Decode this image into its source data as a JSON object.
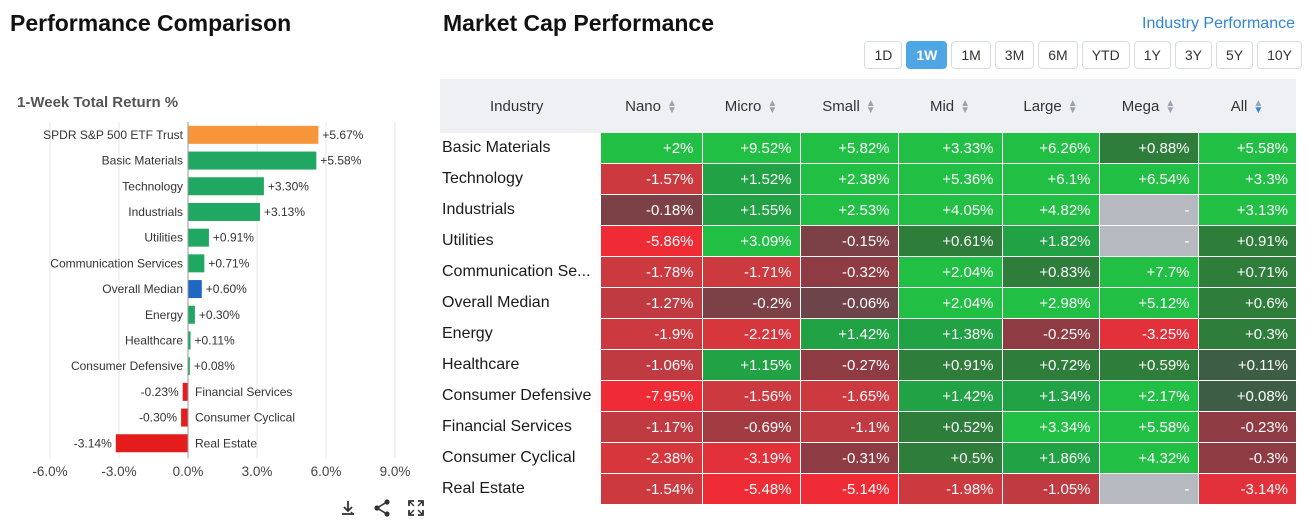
{
  "left_panel": {
    "title": "Performance Comparison"
  },
  "chart_data": {
    "type": "bar",
    "orientation": "horizontal",
    "title": "1-Week Total Return %",
    "categories": [
      "SPDR S&P 500 ETF Trust",
      "Basic Materials",
      "Technology",
      "Industrials",
      "Utilities",
      "Communication Services",
      "Overall Median",
      "Energy",
      "Healthcare",
      "Consumer Defensive",
      "Financial Services",
      "Consumer Cyclical",
      "Real Estate"
    ],
    "values": [
      5.67,
      5.58,
      3.3,
      3.13,
      0.91,
      0.71,
      0.6,
      0.3,
      0.11,
      0.08,
      -0.23,
      -0.3,
      -3.14
    ],
    "value_labels": [
      "+5.67%",
      "+5.58%",
      "+3.30%",
      "+3.13%",
      "+0.91%",
      "+0.71%",
      "+0.60%",
      "+0.30%",
      "+0.11%",
      "+0.08%",
      "-0.23%",
      "-0.30%",
      "-3.14%"
    ],
    "colors": [
      "#f7953a",
      "#20a862",
      "#20a862",
      "#20a862",
      "#20a862",
      "#20a862",
      "#1f67c4",
      "#20a862",
      "#20a862",
      "#20a862",
      "#e51c1c",
      "#e51c1c",
      "#e51c1c"
    ],
    "xlim": [
      -6,
      9
    ],
    "xticks": [
      -6,
      -3,
      0,
      3,
      6,
      9
    ],
    "xtick_labels": [
      "-6.0%",
      "-3.0%",
      "0.0%",
      "3.0%",
      "6.0%",
      "9.0%"
    ],
    "grid": "vertical",
    "legend": "none"
  },
  "chart_tools": [
    "download-icon",
    "share-icon",
    "expand-icon"
  ],
  "right_panel": {
    "title": "Market Cap Performance",
    "link": "Industry Performance",
    "periods": [
      "1D",
      "1W",
      "1M",
      "3M",
      "6M",
      "YTD",
      "1Y",
      "3Y",
      "5Y",
      "10Y"
    ],
    "active_period": "1W",
    "columns": [
      "Industry",
      "Nano",
      "Micro",
      "Small",
      "Mid",
      "Large",
      "Mega",
      "All"
    ],
    "sorted_column": "All",
    "rows": [
      {
        "name": "Basic Materials",
        "cells": [
          {
            "v": "+2%",
            "c": "#21c045"
          },
          {
            "v": "+9.52%",
            "c": "#21c045"
          },
          {
            "v": "+5.82%",
            "c": "#21c045"
          },
          {
            "v": "+3.33%",
            "c": "#21c045"
          },
          {
            "v": "+6.26%",
            "c": "#21c045"
          },
          {
            "v": "+0.88%",
            "c": "#2e7d3a"
          },
          {
            "v": "+5.58%",
            "c": "#21c045"
          }
        ]
      },
      {
        "name": "Technology",
        "cells": [
          {
            "v": "-1.57%",
            "c": "#cc3a40"
          },
          {
            "v": "+1.52%",
            "c": "#21a244"
          },
          {
            "v": "+2.38%",
            "c": "#21c045"
          },
          {
            "v": "+5.36%",
            "c": "#21c045"
          },
          {
            "v": "+6.1%",
            "c": "#21c045"
          },
          {
            "v": "+6.54%",
            "c": "#21c045"
          },
          {
            "v": "+3.3%",
            "c": "#21c045"
          }
        ]
      },
      {
        "name": "Industrials",
        "cells": [
          {
            "v": "-0.18%",
            "c": "#7c4047"
          },
          {
            "v": "+1.55%",
            "c": "#21a244"
          },
          {
            "v": "+2.53%",
            "c": "#21c045"
          },
          {
            "v": "+4.05%",
            "c": "#21c045"
          },
          {
            "v": "+4.82%",
            "c": "#21c045"
          },
          {
            "v": "-",
            "c": "#b7b9c1"
          },
          {
            "v": "+3.13%",
            "c": "#21c045"
          }
        ]
      },
      {
        "name": "Utilities",
        "cells": [
          {
            "v": "-5.86%",
            "c": "#ef2b35"
          },
          {
            "v": "+3.09%",
            "c": "#21c045"
          },
          {
            "v": "-0.15%",
            "c": "#7c4047"
          },
          {
            "v": "+0.61%",
            "c": "#2e7d3a"
          },
          {
            "v": "+1.82%",
            "c": "#21a244"
          },
          {
            "v": "-",
            "c": "#b7b9c1"
          },
          {
            "v": "+0.91%",
            "c": "#2e7d3a"
          }
        ]
      },
      {
        "name": "Communication Se...",
        "cells": [
          {
            "v": "-1.78%",
            "c": "#cc3a40"
          },
          {
            "v": "-1.71%",
            "c": "#cc3a40"
          },
          {
            "v": "-0.32%",
            "c": "#8e3b43"
          },
          {
            "v": "+2.04%",
            "c": "#21c045"
          },
          {
            "v": "+0.83%",
            "c": "#2e7d3a"
          },
          {
            "v": "+7.7%",
            "c": "#21c045"
          },
          {
            "v": "+0.71%",
            "c": "#2e7d3a"
          }
        ]
      },
      {
        "name": "Overall Median",
        "cells": [
          {
            "v": "-1.27%",
            "c": "#c03a41"
          },
          {
            "v": "-0.2%",
            "c": "#7c4047"
          },
          {
            "v": "-0.06%",
            "c": "#6d4449"
          },
          {
            "v": "+2.04%",
            "c": "#21c045"
          },
          {
            "v": "+2.98%",
            "c": "#21c045"
          },
          {
            "v": "+5.12%",
            "c": "#21c045"
          },
          {
            "v": "+0.6%",
            "c": "#2e7d3a"
          }
        ]
      },
      {
        "name": "Energy",
        "cells": [
          {
            "v": "-1.9%",
            "c": "#cc3a40"
          },
          {
            "v": "-2.21%",
            "c": "#d8363d"
          },
          {
            "v": "+1.42%",
            "c": "#21a244"
          },
          {
            "v": "+1.38%",
            "c": "#21a244"
          },
          {
            "v": "-0.25%",
            "c": "#8e3b43"
          },
          {
            "v": "-3.25%",
            "c": "#e2313a"
          },
          {
            "v": "+0.3%",
            "c": "#2e7d3a"
          }
        ]
      },
      {
        "name": "Healthcare",
        "cells": [
          {
            "v": "-1.06%",
            "c": "#c03a41"
          },
          {
            "v": "+1.15%",
            "c": "#21a244"
          },
          {
            "v": "-0.27%",
            "c": "#8e3b43"
          },
          {
            "v": "+0.91%",
            "c": "#2e7d3a"
          },
          {
            "v": "+0.72%",
            "c": "#2e7d3a"
          },
          {
            "v": "+0.59%",
            "c": "#2e7d3a"
          },
          {
            "v": "+0.11%",
            "c": "#3d5e45"
          }
        ]
      },
      {
        "name": "Consumer Defensive",
        "cells": [
          {
            "v": "-7.95%",
            "c": "#ef2b35"
          },
          {
            "v": "-1.56%",
            "c": "#cc3a40"
          },
          {
            "v": "-1.65%",
            "c": "#cc3a40"
          },
          {
            "v": "+1.42%",
            "c": "#21a244"
          },
          {
            "v": "+1.34%",
            "c": "#21a244"
          },
          {
            "v": "+2.17%",
            "c": "#21c045"
          },
          {
            "v": "+0.08%",
            "c": "#3d5e45"
          }
        ]
      },
      {
        "name": "Financial Services",
        "cells": [
          {
            "v": "-1.17%",
            "c": "#c03a41"
          },
          {
            "v": "-0.69%",
            "c": "#a23a42"
          },
          {
            "v": "-1.1%",
            "c": "#c03a41"
          },
          {
            "v": "+0.52%",
            "c": "#2e7d3a"
          },
          {
            "v": "+3.34%",
            "c": "#21c045"
          },
          {
            "v": "+5.58%",
            "c": "#21c045"
          },
          {
            "v": "-0.23%",
            "c": "#8e3b43"
          }
        ]
      },
      {
        "name": "Consumer Cyclical",
        "cells": [
          {
            "v": "-2.38%",
            "c": "#d8363d"
          },
          {
            "v": "-3.19%",
            "c": "#e2313a"
          },
          {
            "v": "-0.31%",
            "c": "#8e3b43"
          },
          {
            "v": "+0.5%",
            "c": "#2e7d3a"
          },
          {
            "v": "+1.86%",
            "c": "#21a244"
          },
          {
            "v": "+4.32%",
            "c": "#21c045"
          },
          {
            "v": "-0.3%",
            "c": "#8e3b43"
          }
        ]
      },
      {
        "name": "Real Estate",
        "cells": [
          {
            "v": "-1.54%",
            "c": "#cc3a40"
          },
          {
            "v": "-5.48%",
            "c": "#ef2b35"
          },
          {
            "v": "-5.14%",
            "c": "#ef2b35"
          },
          {
            "v": "-1.98%",
            "c": "#cc3a40"
          },
          {
            "v": "-1.05%",
            "c": "#c03a41"
          },
          {
            "v": "-",
            "c": "#b7b9c1"
          },
          {
            "v": "-3.14%",
            "c": "#e2313a"
          }
        ]
      }
    ]
  }
}
